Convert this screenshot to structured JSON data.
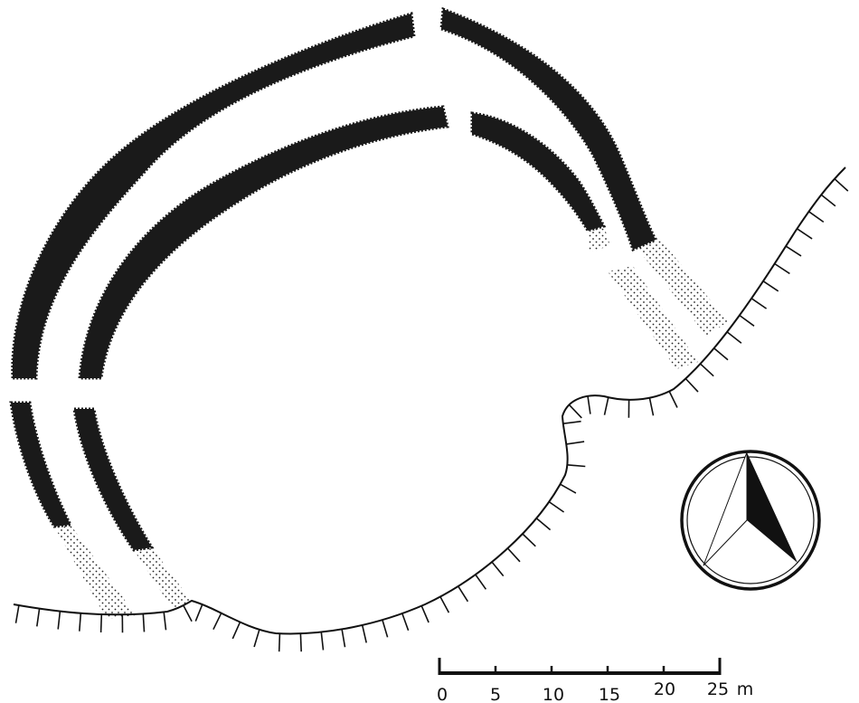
{
  "map": {
    "scale_bar": {
      "ticks": [
        "0",
        "5",
        "10",
        "15",
        "20",
        "25"
      ],
      "unit": "m"
    }
  }
}
